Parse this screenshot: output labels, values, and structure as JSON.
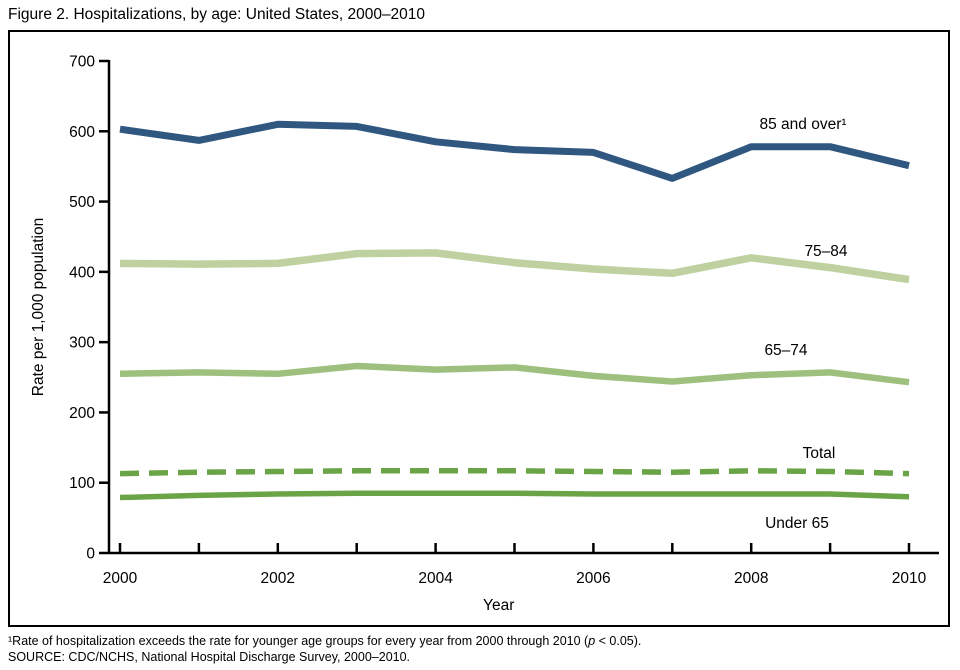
{
  "title": "Figure 2. Hospitalizations, by age: United States, 2000–2010",
  "footnotes": {
    "line1_part1": "¹Rate of hospitalization exceeds the rate for younger age groups for every year from 2000 through 2010 (",
    "line1_p_italic": "p",
    "line1_part2": " < 0.05).",
    "line2": "SOURCE: CDC/NCHS, National Hospital Discharge Survey, 2000–2010."
  },
  "chart_data": {
    "type": "line",
    "title": "Figure 2. Hospitalizations, by age: United States, 2000–2010",
    "xlabel": "Year",
    "ylabel": "Rate per 1,000 population",
    "x": [
      2000,
      2001,
      2002,
      2003,
      2004,
      2005,
      2006,
      2007,
      2008,
      2009,
      2010
    ],
    "x_tick_labels": [
      {
        "year": 2000,
        "label": "2000"
      },
      {
        "year": 2002,
        "label": "2002"
      },
      {
        "year": 2004,
        "label": "2004"
      },
      {
        "year": 2006,
        "label": "2006"
      },
      {
        "year": 2008,
        "label": "2008"
      },
      {
        "year": 2010,
        "label": "2010"
      }
    ],
    "y_ticks": [
      0,
      100,
      200,
      300,
      400,
      500,
      600,
      700
    ],
    "ylim": [
      0,
      700
    ],
    "grid": false,
    "legend_position": "inline-annotations",
    "axis_color": "#000000",
    "series": [
      {
        "name": "85 and over",
        "annotation": "85 and over¹",
        "color": "#2F5780",
        "dashed": false,
        "values": [
          603,
          587,
          610,
          607,
          585,
          574,
          570,
          533,
          578,
          578,
          551
        ]
      },
      {
        "name": "75-84",
        "annotation": "75–84",
        "color": "#BFD1A1",
        "dashed": false,
        "values": [
          412,
          411,
          412,
          426,
          427,
          413,
          404,
          398,
          420,
          406,
          389
        ]
      },
      {
        "name": "65-74",
        "annotation": "65–74",
        "color": "#9EC07E",
        "dashed": false,
        "values": [
          255,
          257,
          255,
          266,
          261,
          264,
          252,
          244,
          253,
          257,
          243
        ]
      },
      {
        "name": "Total",
        "annotation": "Total",
        "color": "#6BA447",
        "dashed": true,
        "values": [
          113,
          115,
          116,
          117,
          117,
          117,
          116,
          115,
          117,
          116,
          113
        ]
      },
      {
        "name": "Under 65",
        "annotation": "Under 65",
        "color": "#6BA447",
        "dashed": false,
        "values": [
          79,
          82,
          84,
          85,
          85,
          85,
          84,
          84,
          84,
          84,
          80
        ]
      }
    ]
  }
}
